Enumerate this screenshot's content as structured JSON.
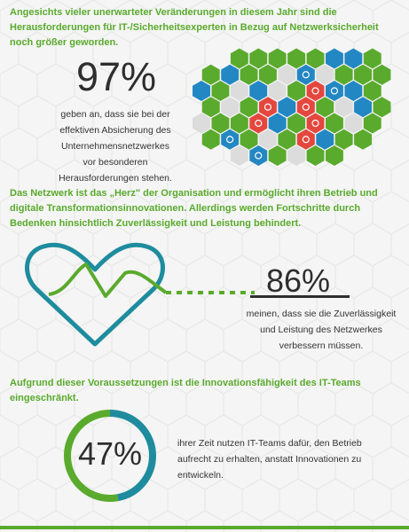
{
  "section1": {
    "heading": "Angesichts vieler unerwarteter Veränderungen in diesem Jahr sind die Herausforderungen für IT-/Sicherheitsexperten in Bezug auf Netzwerksicherheit noch größer geworden.",
    "stat": "97%",
    "caption_lines": [
      "geben an, dass sie bei der",
      "effektiven Absicherung des",
      "Unternehmensnetzwerkes",
      "vor besonderen",
      "Herausforderungen stehen."
    ]
  },
  "section2": {
    "heading": "Das Netzwerk ist das „Herz\" der Organisation und ermöglicht ihren Betrieb und digitale Transformationsinnovationen. Allerdings werden Fortschritte durch Bedenken hinsichtlich Zuverlässigkeit und Leistung behindert.",
    "stat": "86%",
    "caption_lines": [
      "meinen, dass sie die Zuverlässigkeit",
      "und Leistung des Netzwerkes",
      "verbessern müssen."
    ]
  },
  "section3": {
    "heading": "Aufgrund dieser Voraussetzungen ist die Innovationsfähigkeit des IT-Teams eingeschränkt.",
    "stat": "47%",
    "progress_fraction": 0.47,
    "caption_lines": [
      "ihrer Zeit nutzen IT-Teams dafür, den Betrieb",
      "aufrecht zu erhalten, anstatt Innovationen zu",
      "entwickeln."
    ]
  },
  "colors": {
    "green": "#5aaa2d",
    "teal": "#1e8c9e",
    "blue": "#2387c3",
    "red": "#e4473e",
    "gray": "#dcdcdc",
    "dark": "#2e2e2e"
  },
  "icons": [
    "network-hex-icon",
    "security-alert-icon",
    "heartbeat-icon",
    "progress-ring-icon"
  ]
}
